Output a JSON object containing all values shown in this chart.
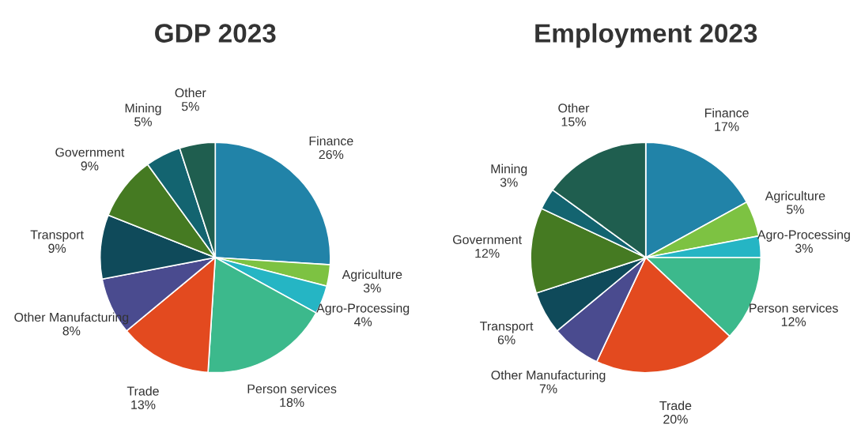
{
  "chart_data": [
    {
      "type": "pie",
      "title": "GDP 2023",
      "categories": [
        "Finance",
        "Agriculture",
        "Agro-Processing",
        "Person services",
        "Trade",
        "Other Manufacturing",
        "Transport",
        "Government",
        "Mining",
        "Other"
      ],
      "values": [
        26,
        3,
        4,
        18,
        13,
        8,
        9,
        9,
        5,
        5
      ],
      "value_labels": [
        "26%",
        "3%",
        "4%",
        "18%",
        "13%",
        "8%",
        "9%",
        "9%",
        "5%",
        "5%"
      ],
      "colors": [
        "#2183a8",
        "#7dc242",
        "#25b5c4",
        "#3cb98c",
        "#e34a1f",
        "#4a4b8f",
        "#0f4a5a",
        "#457a22",
        "#136470",
        "#1f5e4f"
      ]
    },
    {
      "type": "pie",
      "title": "Employment 2023",
      "categories": [
        "Finance",
        "Agriculture",
        "Agro-Processing",
        "Person services",
        "Trade",
        "Other Manufacturing",
        "Transport",
        "Government",
        "Mining",
        "Other"
      ],
      "values": [
        17,
        5,
        3,
        12,
        20,
        7,
        6,
        12,
        3,
        15
      ],
      "value_labels": [
        "17%",
        "5%",
        "3%",
        "12%",
        "20%",
        "7%",
        "6%",
        "12%",
        "3%",
        "15%"
      ],
      "colors": [
        "#2183a8",
        "#7dc242",
        "#25b5c4",
        "#3cb98c",
        "#e34a1f",
        "#4a4b8f",
        "#0f4a5a",
        "#457a22",
        "#136470",
        "#1f5e4f"
      ]
    }
  ]
}
